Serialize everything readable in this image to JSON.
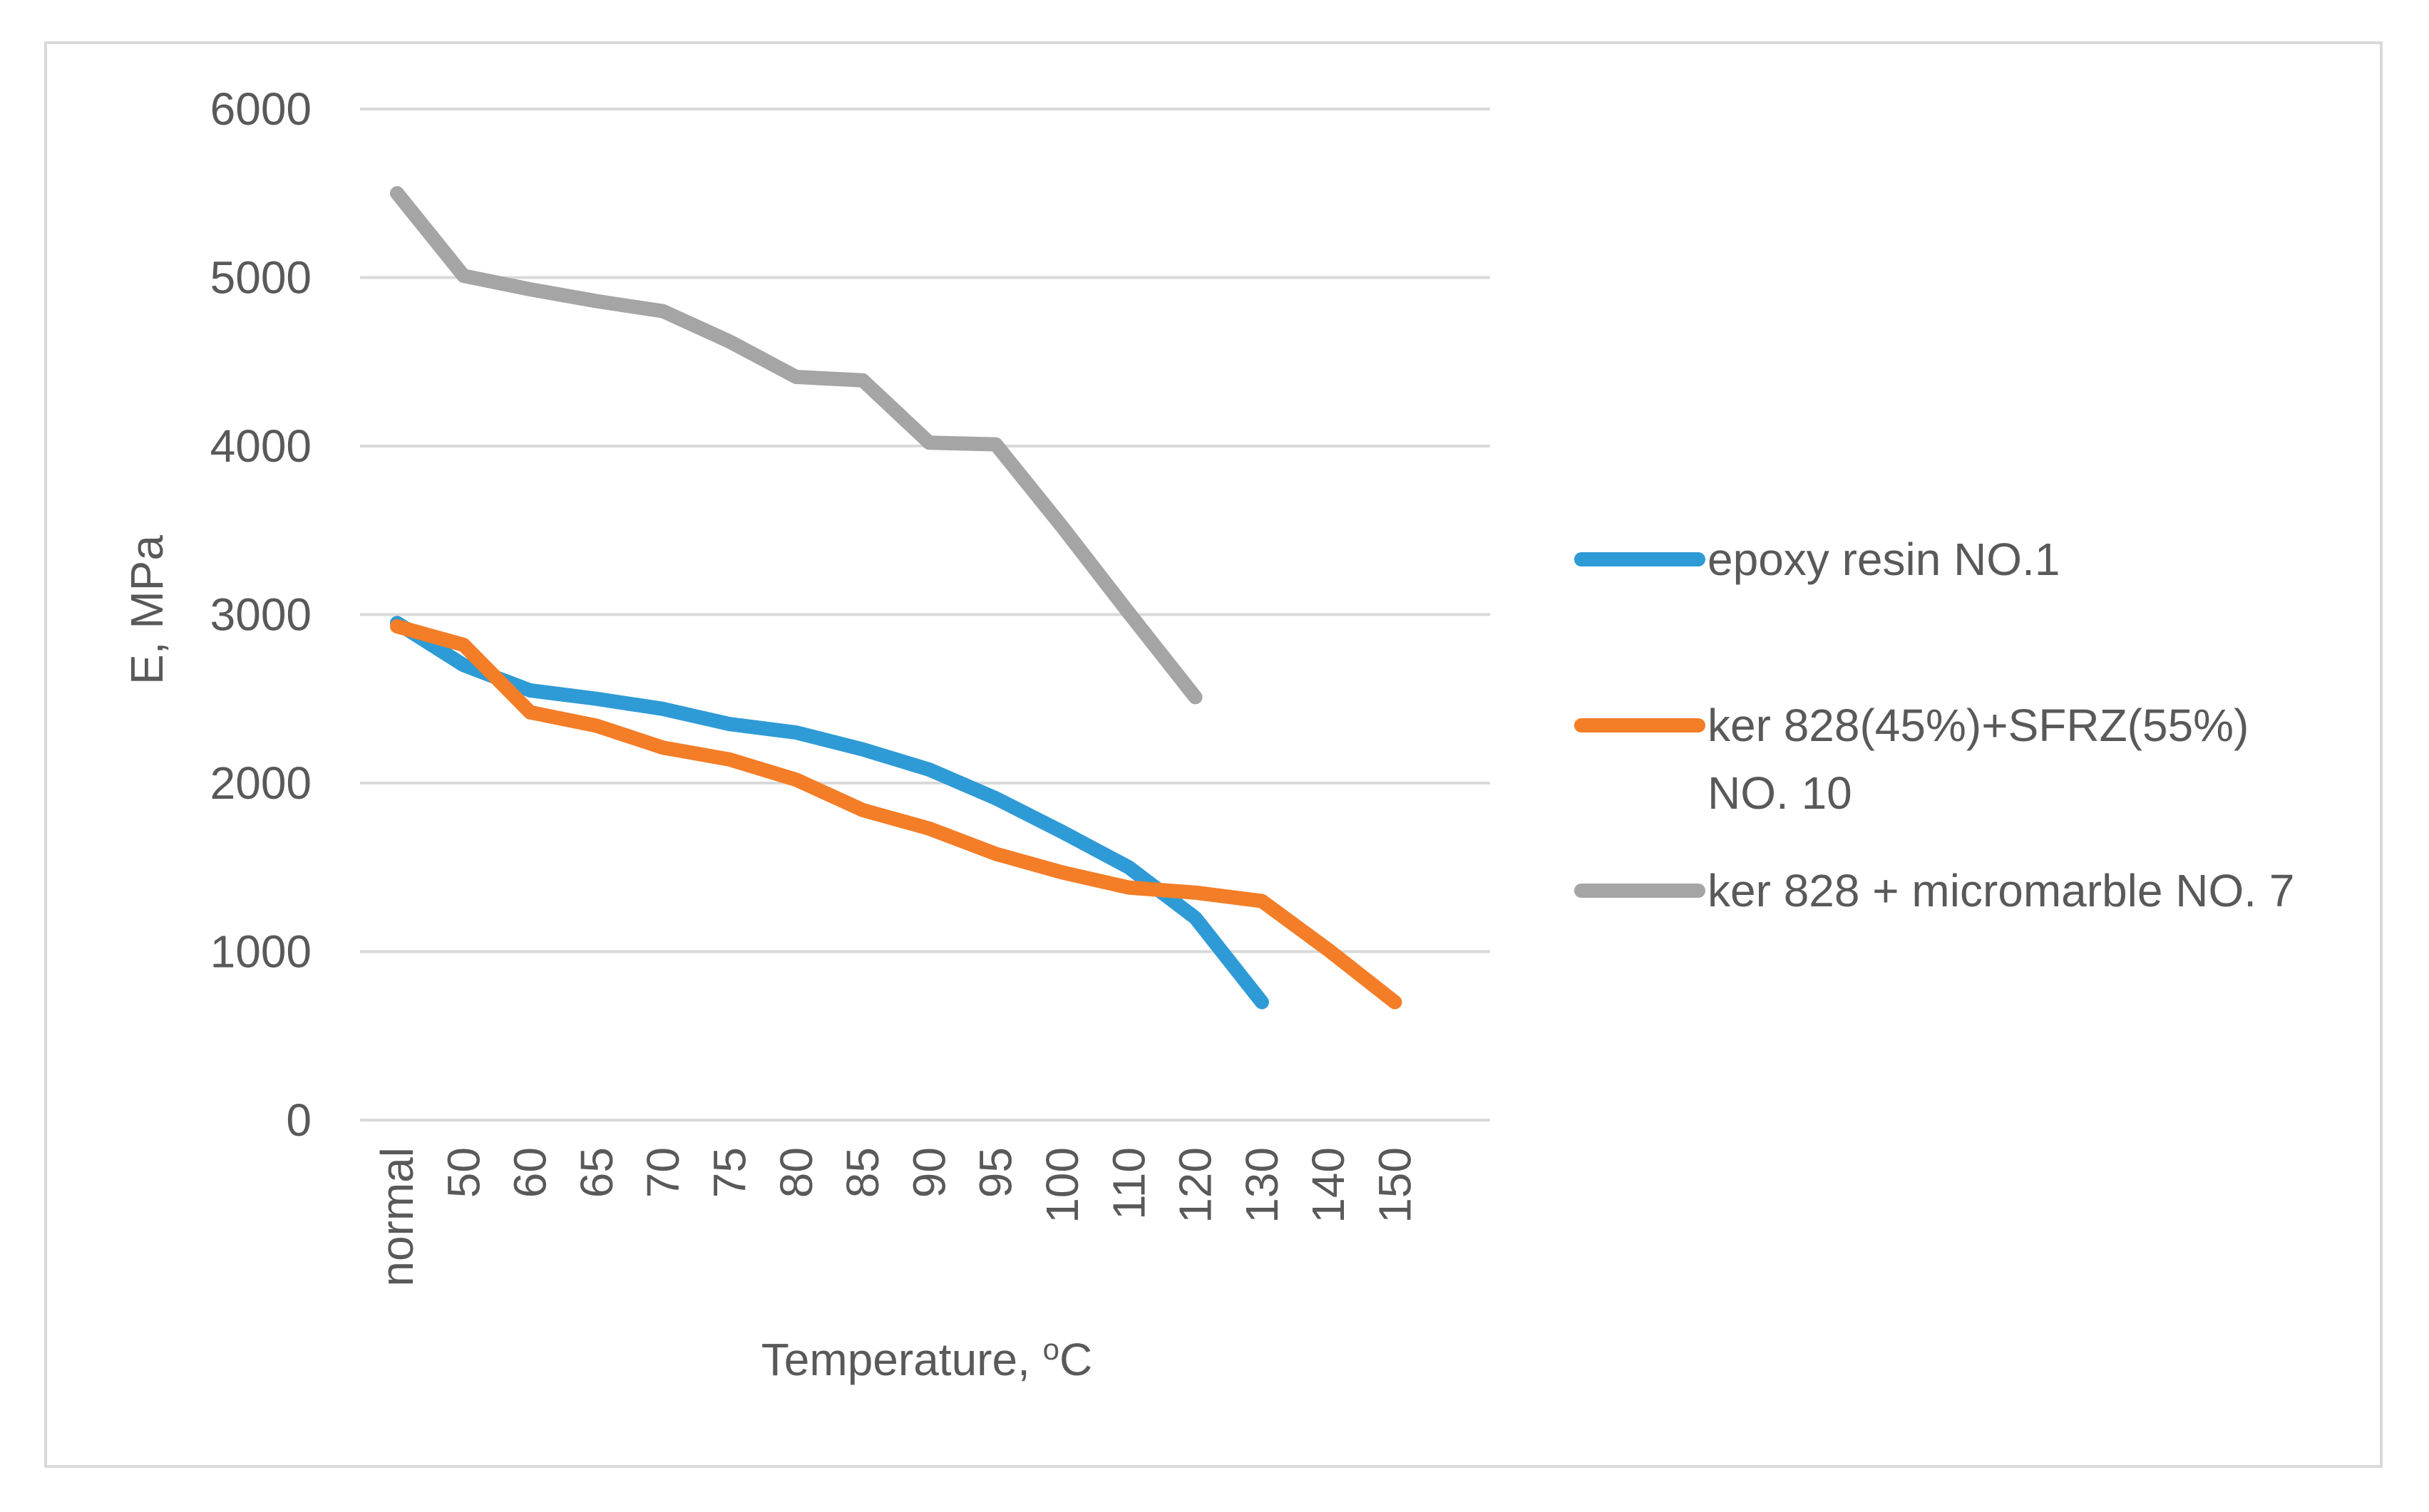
{
  "chart_data": {
    "type": "line",
    "title": "",
    "xlabel": "Temperature, ",
    "xlabel_sup": "o",
    "xlabel_unit": "C",
    "ylabel": "E, MPa",
    "ylim": [
      0,
      6000
    ],
    "yticks": [
      "0",
      "1000",
      "2000",
      "3000",
      "4000",
      "5000",
      "6000"
    ],
    "categories": [
      "normal",
      "50",
      "60",
      "65",
      "70",
      "75",
      "80",
      "85",
      "90",
      "95",
      "100",
      "110",
      "120",
      "130",
      "140",
      "150"
    ],
    "grid": true,
    "legend_position": "right",
    "series": [
      {
        "name": "epoxy resin NO.1",
        "legend_lines": [
          "epoxy resin NO.1"
        ],
        "color": "#2e9bd6",
        "values": [
          2950,
          2700,
          2550,
          2500,
          2440,
          2350,
          2300,
          2200,
          2080,
          1910,
          1710,
          1500,
          1200,
          700,
          null,
          null
        ]
      },
      {
        "name": "ker 828(45%)+SFRZ(55%) NO. 10",
        "legend_lines": [
          "ker 828(45%)+SFRZ(55%)",
          "NO. 10"
        ],
        "color": "#f47d27",
        "values": [
          2930,
          2820,
          2420,
          2340,
          2210,
          2140,
          2020,
          1840,
          1730,
          1580,
          1470,
          1380,
          1350,
          1300,
          1010,
          700
        ]
      },
      {
        "name": "ker 828 + micromarble NO. 7",
        "legend_lines": [
          "ker 828 + micromarble NO. 7"
        ],
        "color": "#a5a5a5",
        "values": [
          5500,
          5010,
          4930,
          4860,
          4800,
          4620,
          4410,
          4390,
          4020,
          4010,
          3520,
          3010,
          2510,
          null,
          null,
          null
        ]
      }
    ]
  }
}
